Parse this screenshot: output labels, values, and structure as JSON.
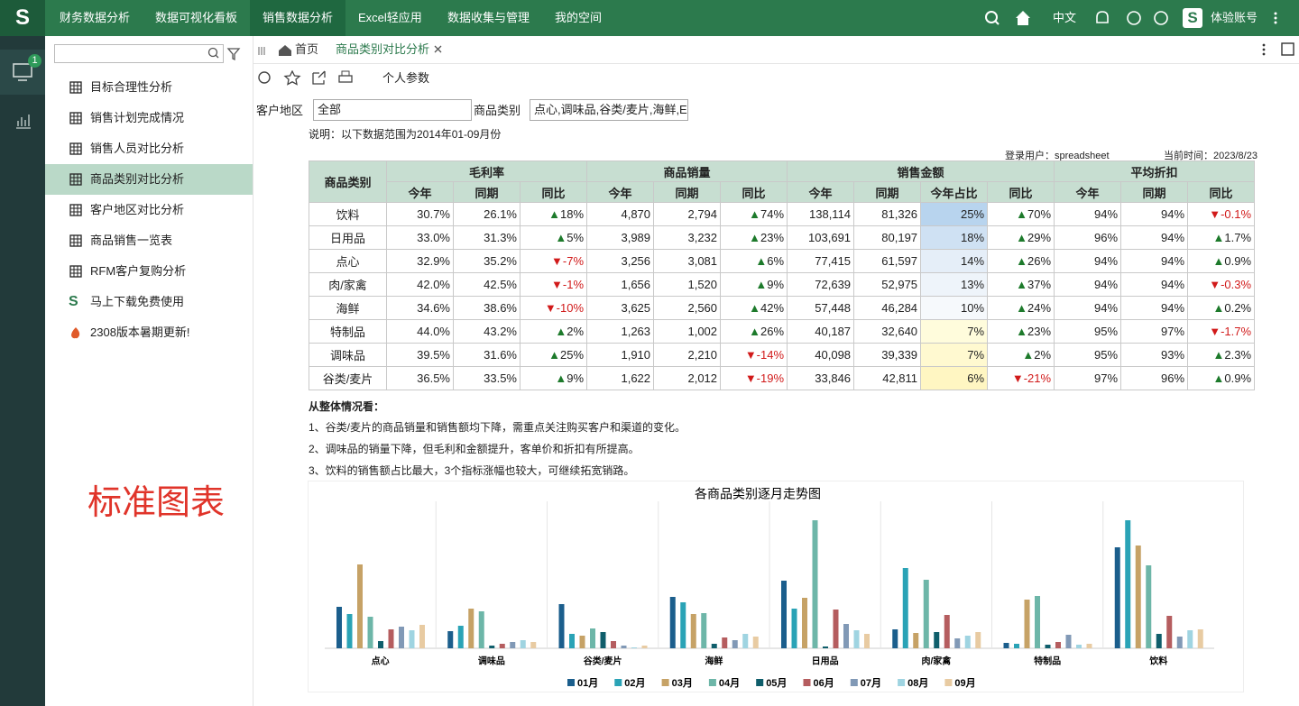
{
  "nav": {
    "logo": "S",
    "menu": [
      "财务数据分析",
      "数据可视化看板",
      "销售数据分析",
      "Excel轻应用",
      "数据收集与管理",
      "我的空间"
    ],
    "active": 2,
    "language": "中文",
    "account": "体验账号"
  },
  "sidebar": {
    "badge": "1",
    "items": [
      "目标合理性分析",
      "销售计划完成情况",
      "销售人员对比分析",
      "商品类别对比分析",
      "客户地区对比分析",
      "商品销售一览表",
      "RFM客户复购分析",
      "马上下载免费使用",
      "2308版本暑期更新!"
    ],
    "active": 3
  },
  "watermark": "标准图表",
  "tabs": {
    "home": "首页",
    "current": "商品类别对比分析"
  },
  "toolbar": {
    "params": "个人参数"
  },
  "filters": [
    {
      "label": "客户地区",
      "value": "全部"
    },
    {
      "label": "商品类别",
      "value": "点心,调味品,谷类/麦片,海鲜,E"
    }
  ],
  "note": "说明：以下数据范围为2014年01-09月份",
  "meta": {
    "user": "登录用户：spreadsheet",
    "time": "当前时间：2023/8/23"
  },
  "table": {
    "corner": "商品类别",
    "groups": [
      {
        "name": "毛利率",
        "columns": [
          "今年",
          "同期",
          "同比"
        ]
      },
      {
        "name": "商品销量",
        "columns": [
          "今年",
          "同期",
          "同比"
        ]
      },
      {
        "name": "销售金额",
        "columns": [
          "今年",
          "同期",
          "今年占比",
          "同比"
        ]
      },
      {
        "name": "平均折扣",
        "columns": [
          "今年",
          "同期",
          "同比"
        ]
      }
    ],
    "rows": [
      [
        "饮料",
        "30.7%",
        "26.1%",
        "▲18%",
        "4,870",
        "2,794",
        "▲74%",
        "138,114",
        "81,326",
        "25%",
        "▲70%",
        "94%",
        "94%",
        "▼-0.1%"
      ],
      [
        "日用品",
        "33.0%",
        "31.3%",
        "▲5%",
        "3,989",
        "3,232",
        "▲23%",
        "103,691",
        "80,197",
        "18%",
        "▲29%",
        "96%",
        "94%",
        "▲1.7%"
      ],
      [
        "点心",
        "32.9%",
        "35.2%",
        "▼-7%",
        "3,256",
        "3,081",
        "▲6%",
        "77,415",
        "61,597",
        "14%",
        "▲26%",
        "94%",
        "94%",
        "▲0.9%"
      ],
      [
        "肉/家禽",
        "42.0%",
        "42.5%",
        "▼-1%",
        "1,656",
        "1,520",
        "▲9%",
        "72,639",
        "52,975",
        "13%",
        "▲37%",
        "94%",
        "94%",
        "▼-0.3%"
      ],
      [
        "海鲜",
        "34.6%",
        "38.6%",
        "▼-10%",
        "3,625",
        "2,560",
        "▲42%",
        "57,448",
        "46,284",
        "10%",
        "▲24%",
        "94%",
        "94%",
        "▲0.2%"
      ],
      [
        "特制品",
        "44.0%",
        "43.2%",
        "▲2%",
        "1,263",
        "1,002",
        "▲26%",
        "40,187",
        "32,640",
        "7%",
        "▲23%",
        "95%",
        "97%",
        "▼-1.7%"
      ],
      [
        "调味品",
        "39.5%",
        "31.6%",
        "▲25%",
        "1,910",
        "2,210",
        "▼-14%",
        "40,098",
        "39,339",
        "7%",
        "▲2%",
        "95%",
        "93%",
        "▲2.3%"
      ],
      [
        "谷类/麦片",
        "36.5%",
        "33.5%",
        "▲9%",
        "1,622",
        "2,012",
        "▼-19%",
        "33,846",
        "42,811",
        "6%",
        "▼-21%",
        "97%",
        "96%",
        "▲0.9%"
      ]
    ],
    "share_column": 9,
    "share_colors": [
      "#b8d4ee",
      "#cfe1f3",
      "#e5eef8",
      "#eef4fa",
      "#f6f9fc",
      "#fffcdc",
      "#fff9d0",
      "#fff6c2"
    ]
  },
  "summary": {
    "title": "从整体情况看：",
    "lines": [
      "1、谷类/麦片的商品销量和销售额均下降，需重点关注购买客户和渠道的变化。",
      "2、调味品的销量下降，但毛利和金额提升，客单价和折扣有所提高。",
      "3、饮料的销售额占比最大，3个指标涨幅也较大，可继续拓宽销路。"
    ]
  },
  "chart_data": {
    "type": "bar",
    "title": "各商品类别逐月走势图",
    "categories": [
      "点心",
      "调味品",
      "谷类/麦片",
      "海鲜",
      "日用品",
      "肉/家禽",
      "特制品",
      "饮料"
    ],
    "ylim": [
      0,
      145
    ],
    "series": [
      {
        "name": "01月",
        "color": "#1b5e8c",
        "values": [
          46,
          19,
          49,
          57,
          75,
          21,
          6,
          112
        ]
      },
      {
        "name": "02月",
        "color": "#2aa3b6",
        "values": [
          38,
          25,
          16,
          51,
          44,
          89,
          5,
          142
        ]
      },
      {
        "name": "03月",
        "color": "#c6a266",
        "values": [
          93,
          44,
          14,
          38,
          56,
          17,
          54,
          114
        ]
      },
      {
        "name": "04月",
        "color": "#6db6a8",
        "values": [
          35,
          41,
          22,
          39,
          142,
          76,
          58,
          92
        ]
      },
      {
        "name": "05月",
        "color": "#0f5e6b",
        "values": [
          8,
          3,
          18,
          5,
          2,
          18,
          4,
          16
        ]
      },
      {
        "name": "06月",
        "color": "#b55d5f",
        "values": [
          21,
          5,
          8,
          12,
          43,
          37,
          7,
          36
        ]
      },
      {
        "name": "07月",
        "color": "#8199b6",
        "values": [
          24,
          7,
          3,
          9,
          27,
          11,
          15,
          13
        ]
      },
      {
        "name": "08月",
        "color": "#9fd4e1",
        "values": [
          20,
          9,
          1,
          16,
          20,
          14,
          4,
          20
        ]
      },
      {
        "name": "09月",
        "color": "#e8cba2",
        "values": [
          26,
          7,
          3,
          13,
          16,
          18,
          5,
          21
        ]
      }
    ]
  }
}
